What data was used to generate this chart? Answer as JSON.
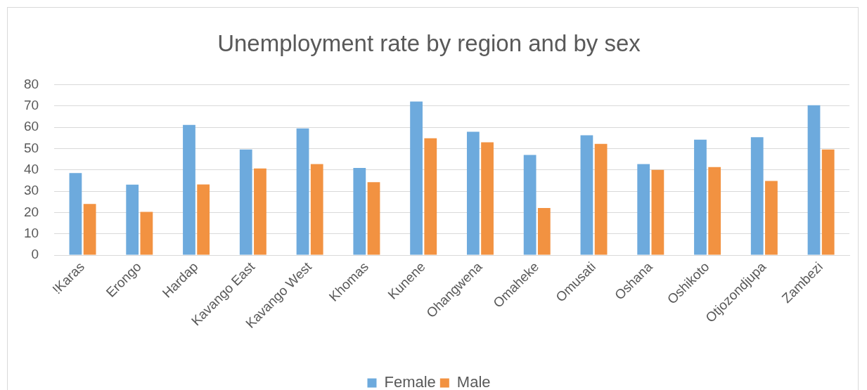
{
  "chart_data": {
    "type": "bar",
    "title": "Unemployment rate by region and by sex",
    "categories": [
      "!Karas",
      "Erongo",
      "Hardap",
      "Kavango East",
      "Kavango West",
      "Khomas",
      "Kunene",
      "Ohangwena",
      "Omaheke",
      "Omusati",
      "Oshana",
      "Oshikoto",
      "Otjozondjupa",
      "Zambezi"
    ],
    "series": [
      {
        "name": "Female",
        "color": "#6daadd",
        "values": [
          38.5,
          33.1,
          61.1,
          49.6,
          59.5,
          40.9,
          72.1,
          57.9,
          47.0,
          56.3,
          42.7,
          54.2,
          55.4,
          70.4
        ]
      },
      {
        "name": "Male",
        "color": "#f29241",
        "values": [
          24.0,
          20.3,
          33.2,
          40.7,
          42.7,
          34.2,
          54.9,
          53.0,
          22.1,
          52.2,
          40.0,
          41.3,
          34.8,
          49.6
        ]
      }
    ],
    "ylim": [
      0,
      80
    ],
    "yticks": [
      0,
      10,
      20,
      30,
      40,
      50,
      60,
      70,
      80
    ],
    "grid": "y",
    "legend": "bottom"
  }
}
